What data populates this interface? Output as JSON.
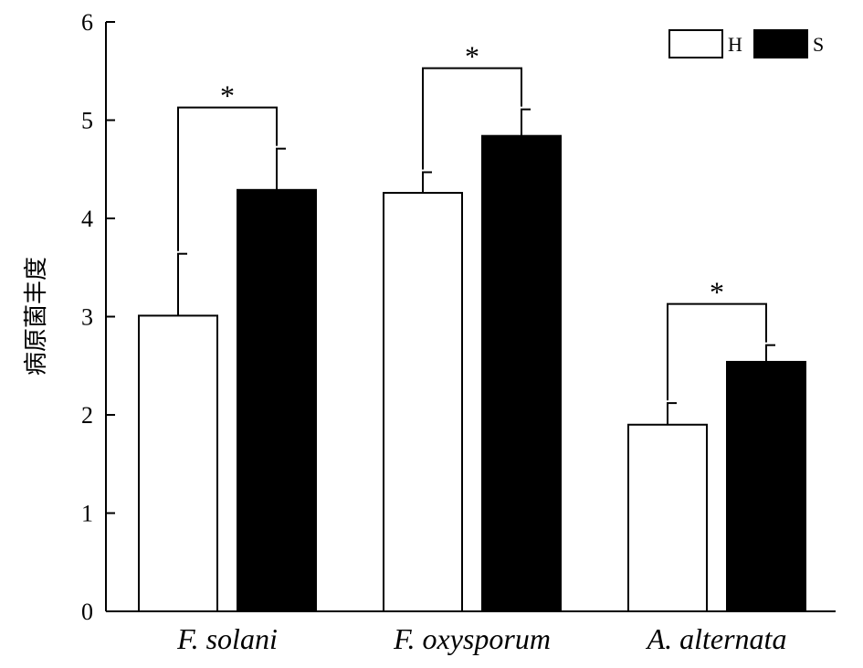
{
  "chart_data": {
    "type": "bar",
    "ylabel": "病原菌丰度",
    "ylim": [
      0,
      6
    ],
    "yticks": [
      "0",
      "1",
      "2",
      "3",
      "4",
      "5",
      "6"
    ],
    "categories": [
      "F. solani",
      "F. oxysporum",
      "A. alternata"
    ],
    "series": [
      {
        "name": "H",
        "color": "#ffffff",
        "values": [
          3.01,
          4.26,
          1.9
        ],
        "errors": [
          0.63,
          0.21,
          0.22
        ]
      },
      {
        "name": "S",
        "color": "#000000",
        "values": [
          4.29,
          4.84,
          2.54
        ],
        "errors": [
          0.42,
          0.27,
          0.17
        ]
      }
    ],
    "significance": [
      "*",
      "*",
      "*"
    ],
    "legend_position": "top-right",
    "grid": false
  }
}
